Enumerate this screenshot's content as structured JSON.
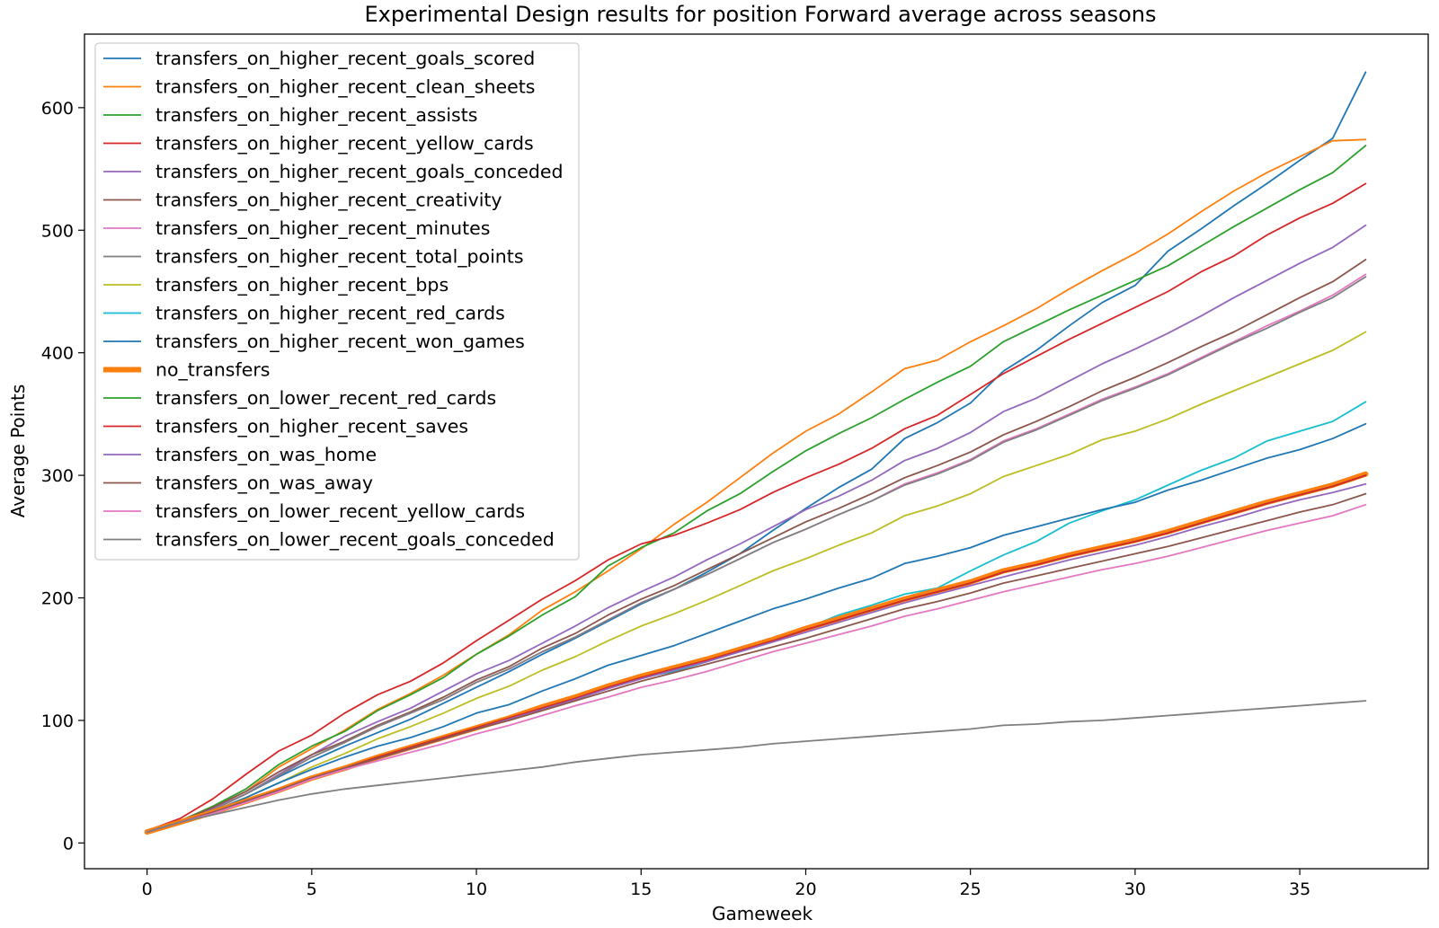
{
  "chart_data": {
    "type": "line",
    "title": "Experimental Design results for position Forward average across seasons",
    "xlabel": "Gameweek",
    "ylabel": "Average Points",
    "xlim": [
      -1.9,
      38.9
    ],
    "ylim": [
      -21,
      660
    ],
    "xticks": [
      0,
      5,
      10,
      15,
      20,
      25,
      30,
      35
    ],
    "yticks": [
      0,
      100,
      200,
      300,
      400,
      500,
      600
    ],
    "grid": false,
    "legend_position": "top-left",
    "series": [
      {
        "name": "transfers_on_higher_recent_goals_scored",
        "color": "#1f77b4",
        "width": 1.8,
        "values": [
          9,
          17,
          27,
          40,
          54,
          67,
          79,
          90,
          101,
          114,
          127,
          140,
          154,
          167,
          181,
          195,
          207,
          221,
          236,
          255,
          273,
          290,
          305,
          330,
          343,
          359,
          385,
          402,
          422,
          441,
          455,
          483,
          501,
          520,
          538,
          557,
          575,
          629
        ]
      },
      {
        "name": "transfers_on_higher_recent_clean_sheets",
        "color": "#ff7f0e",
        "width": 1.8,
        "values": [
          9,
          18,
          29,
          42,
          62,
          77,
          92,
          109,
          122,
          137,
          154,
          170,
          190,
          205,
          222,
          240,
          260,
          278,
          298,
          318,
          336,
          350,
          368,
          387,
          394,
          409,
          422,
          436,
          452,
          467,
          481,
          497,
          515,
          532,
          547,
          560,
          573,
          574
        ]
      },
      {
        "name": "transfers_on_higher_recent_assists",
        "color": "#2ca02c",
        "width": 1.8,
        "values": [
          9,
          18,
          30,
          44,
          64,
          79,
          91,
          108,
          121,
          135,
          154,
          169,
          186,
          201,
          226,
          241,
          253,
          271,
          285,
          303,
          320,
          334,
          347,
          362,
          376,
          389,
          409,
          422,
          435,
          447,
          459,
          471,
          487,
          503,
          518,
          533,
          547,
          569
        ]
      },
      {
        "name": "transfers_on_higher_recent_yellow_cards",
        "color": "#d62728",
        "width": 1.8,
        "values": [
          10,
          20,
          36,
          56,
          75,
          88,
          106,
          121,
          132,
          147,
          165,
          182,
          199,
          214,
          231,
          244,
          251,
          261,
          272,
          286,
          298,
          309,
          322,
          338,
          349,
          366,
          383,
          397,
          411,
          424,
          437,
          450,
          466,
          479,
          496,
          510,
          522,
          538
        ]
      },
      {
        "name": "transfers_on_higher_recent_goals_conceded",
        "color": "#9467bd",
        "width": 1.8,
        "values": [
          9,
          17,
          28,
          40,
          56,
          72,
          87,
          99,
          110,
          124,
          138,
          149,
          163,
          177,
          192,
          205,
          217,
          231,
          244,
          258,
          272,
          283,
          296,
          312,
          322,
          335,
          352,
          363,
          377,
          391,
          403,
          416,
          430,
          445,
          459,
          473,
          486,
          504
        ]
      },
      {
        "name": "transfers_on_higher_recent_creativity",
        "color": "#8c564b",
        "width": 1.8,
        "values": [
          9,
          18,
          29,
          42,
          58,
          72,
          83,
          96,
          107,
          119,
          133,
          144,
          159,
          171,
          186,
          199,
          210,
          223,
          236,
          249,
          262,
          273,
          285,
          298,
          308,
          319,
          333,
          344,
          356,
          369,
          380,
          392,
          405,
          417,
          431,
          445,
          458,
          476
        ]
      },
      {
        "name": "transfers_on_higher_recent_minutes",
        "color": "#e377c2",
        "width": 1.8,
        "values": [
          9,
          17,
          27,
          40,
          55,
          70,
          82,
          95,
          106,
          117,
          131,
          142,
          156,
          168,
          182,
          196,
          207,
          219,
          232,
          245,
          256,
          268,
          279,
          293,
          302,
          313,
          328,
          338,
          350,
          362,
          372,
          383,
          396,
          409,
          422,
          434,
          447,
          464
        ]
      },
      {
        "name": "transfers_on_higher_recent_total_points",
        "color": "#7f7f7f",
        "width": 1.8,
        "values": [
          9,
          17,
          27,
          40,
          55,
          70,
          82,
          95,
          106,
          117,
          131,
          142,
          156,
          168,
          182,
          196,
          207,
          219,
          232,
          245,
          256,
          268,
          279,
          292,
          301,
          312,
          327,
          337,
          349,
          361,
          371,
          382,
          395,
          408,
          420,
          433,
          445,
          462
        ]
      },
      {
        "name": "transfers_on_higher_recent_bps",
        "color": "#bcbd22",
        "width": 1.8,
        "values": [
          9,
          17,
          26,
          37,
          49,
          62,
          73,
          85,
          95,
          106,
          118,
          128,
          141,
          152,
          165,
          177,
          187,
          198,
          210,
          222,
          232,
          243,
          253,
          267,
          275,
          285,
          299,
          308,
          317,
          329,
          336,
          346,
          358,
          369,
          380,
          391,
          402,
          417
        ]
      },
      {
        "name": "transfers_on_higher_recent_red_cards",
        "color": "#17becf",
        "width": 1.8,
        "values": [
          9,
          17,
          25,
          34,
          43,
          53,
          62,
          70,
          78,
          86,
          94,
          103,
          111,
          120,
          128,
          135,
          140,
          148,
          157,
          166,
          175,
          186,
          194,
          203,
          208,
          222,
          235,
          246,
          261,
          271,
          280,
          292,
          304,
          314,
          328,
          336,
          344,
          360
        ]
      },
      {
        "name": "transfers_on_higher_recent_won_games",
        "color": "#1f77b4",
        "width": 1.8,
        "values": [
          9,
          17,
          26,
          37,
          49,
          60,
          70,
          79,
          86,
          95,
          106,
          113,
          124,
          134,
          145,
          153,
          161,
          171,
          181,
          191,
          199,
          208,
          216,
          228,
          234,
          241,
          251,
          258,
          265,
          272,
          278,
          288,
          296,
          305,
          314,
          321,
          330,
          342
        ]
      },
      {
        "name": "no_transfers",
        "color": "#ff7f0e",
        "width": 6,
        "values": [
          9,
          17,
          25,
          34,
          43,
          53,
          61,
          70,
          78,
          86,
          94,
          102,
          111,
          119,
          128,
          136,
          143,
          150,
          158,
          166,
          175,
          183,
          191,
          199,
          206,
          213,
          222,
          228,
          235,
          241,
          247,
          254,
          262,
          270,
          278,
          285,
          292,
          301
        ]
      },
      {
        "name": "transfers_on_lower_recent_red_cards",
        "color": "#2ca02c",
        "width": 1.8,
        "values": [
          9,
          17,
          25,
          34,
          43,
          53,
          61,
          70,
          78,
          86,
          94,
          102,
          110,
          118,
          127,
          135,
          142,
          149,
          157,
          165,
          174,
          182,
          190,
          198,
          205,
          212,
          221,
          227,
          234,
          240,
          246,
          253,
          261,
          269,
          277,
          284,
          291,
          300
        ]
      },
      {
        "name": "transfers_on_higher_recent_saves",
        "color": "#d62728",
        "width": 1.8,
        "values": [
          9,
          17,
          25,
          34,
          43,
          53,
          61,
          70,
          78,
          86,
          94,
          102,
          110,
          118,
          127,
          135,
          142,
          149,
          157,
          165,
          174,
          182,
          190,
          198,
          205,
          212,
          221,
          227,
          234,
          240,
          246,
          253,
          261,
          269,
          277,
          284,
          291,
          300
        ]
      },
      {
        "name": "transfers_on_was_home",
        "color": "#9467bd",
        "width": 1.8,
        "values": [
          9,
          17,
          25,
          34,
          43,
          53,
          61,
          69,
          77,
          85,
          93,
          101,
          109,
          117,
          126,
          134,
          141,
          148,
          156,
          164,
          172,
          180,
          188,
          196,
          203,
          210,
          217,
          224,
          231,
          237,
          243,
          250,
          258,
          265,
          273,
          280,
          286,
          293
        ]
      },
      {
        "name": "transfers_on_was_away",
        "color": "#8c564b",
        "width": 1.8,
        "values": [
          9,
          17,
          25,
          34,
          43,
          53,
          61,
          69,
          77,
          85,
          93,
          100,
          108,
          116,
          124,
          132,
          139,
          146,
          153,
          160,
          167,
          175,
          183,
          191,
          197,
          204,
          212,
          218,
          224,
          230,
          236,
          242,
          249,
          256,
          263,
          270,
          276,
          285
        ]
      },
      {
        "name": "transfers_on_lower_recent_yellow_cards",
        "color": "#e377c2",
        "width": 1.8,
        "values": [
          9,
          17,
          24,
          33,
          42,
          52,
          60,
          67,
          74,
          81,
          89,
          96,
          104,
          112,
          119,
          127,
          133,
          140,
          148,
          156,
          163,
          170,
          177,
          185,
          191,
          198,
          205,
          211,
          217,
          223,
          228,
          234,
          241,
          248,
          255,
          261,
          267,
          276
        ]
      },
      {
        "name": "transfers_on_lower_recent_goals_conceded",
        "color": "#7f7f7f",
        "width": 1.8,
        "values": [
          9,
          17,
          23,
          29,
          35,
          40,
          44,
          47,
          50,
          53,
          56,
          59,
          62,
          66,
          69,
          72,
          74,
          76,
          78,
          81,
          83,
          85,
          87,
          89,
          91,
          93,
          96,
          97,
          99,
          100,
          102,
          104,
          106,
          108,
          110,
          112,
          114,
          116
        ]
      }
    ]
  }
}
